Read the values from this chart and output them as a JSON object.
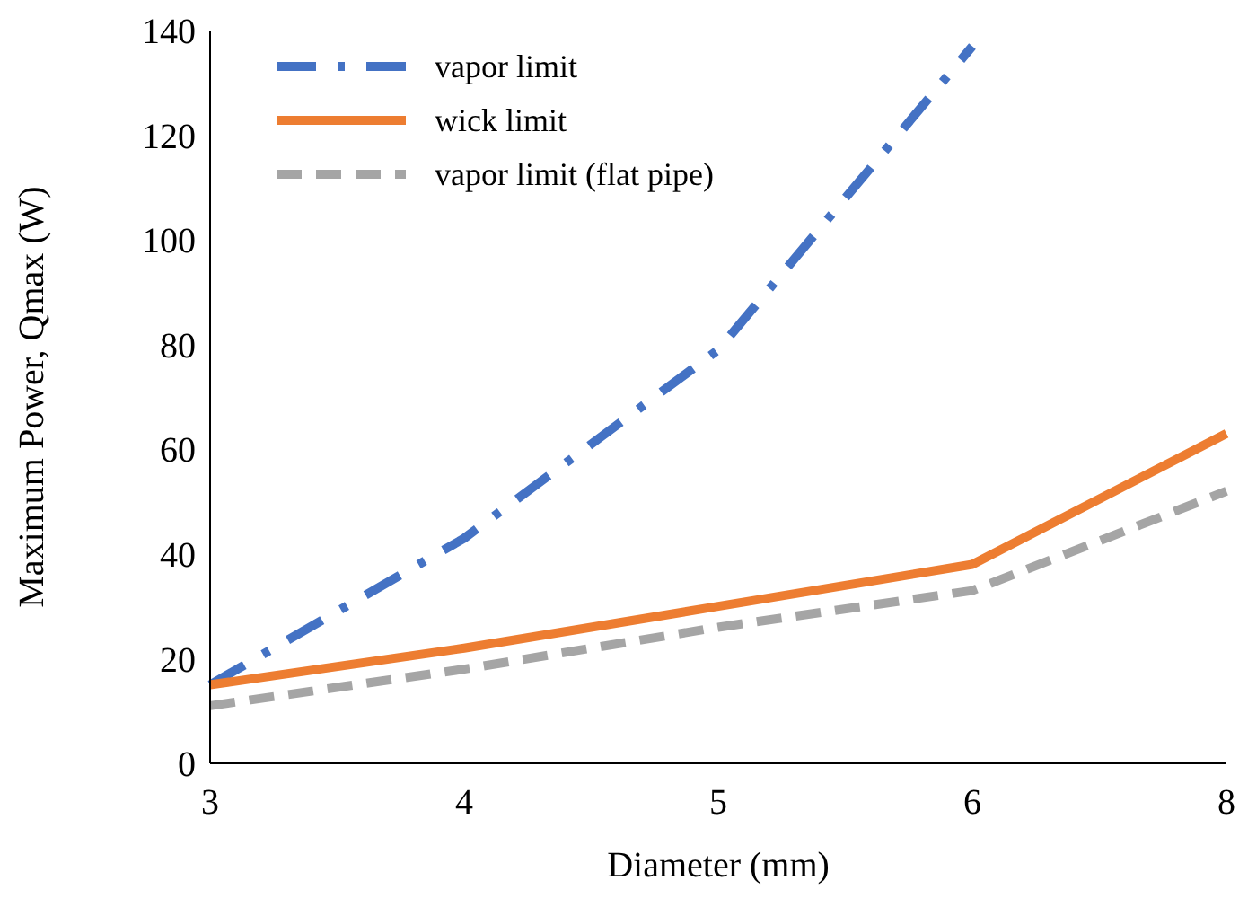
{
  "chart_data": {
    "type": "line",
    "xlabel": "Diameter (mm)",
    "ylabel": "Maximum Power, Qmax (W)",
    "categories": [
      "3",
      "4",
      "5",
      "6",
      "8"
    ],
    "series": [
      {
        "name": "vapor limit",
        "color": "#4472c4",
        "line_style": "dashdot",
        "values": [
          15,
          43,
          79,
          137,
          null
        ]
      },
      {
        "name": "wick limit",
        "color": "#ed7d31",
        "line_style": "solid",
        "values": [
          15,
          22,
          30,
          38,
          63
        ]
      },
      {
        "name": "vapor limit (flat pipe)",
        "color": "#a5a5a5",
        "line_style": "dashed",
        "values": [
          11,
          18,
          26,
          33,
          52
        ]
      }
    ],
    "ylim": [
      0,
      140
    ],
    "yticks": [
      0,
      20,
      40,
      60,
      80,
      100,
      120,
      140
    ],
    "grid": false,
    "legend": "top left",
    "marker": "none"
  }
}
